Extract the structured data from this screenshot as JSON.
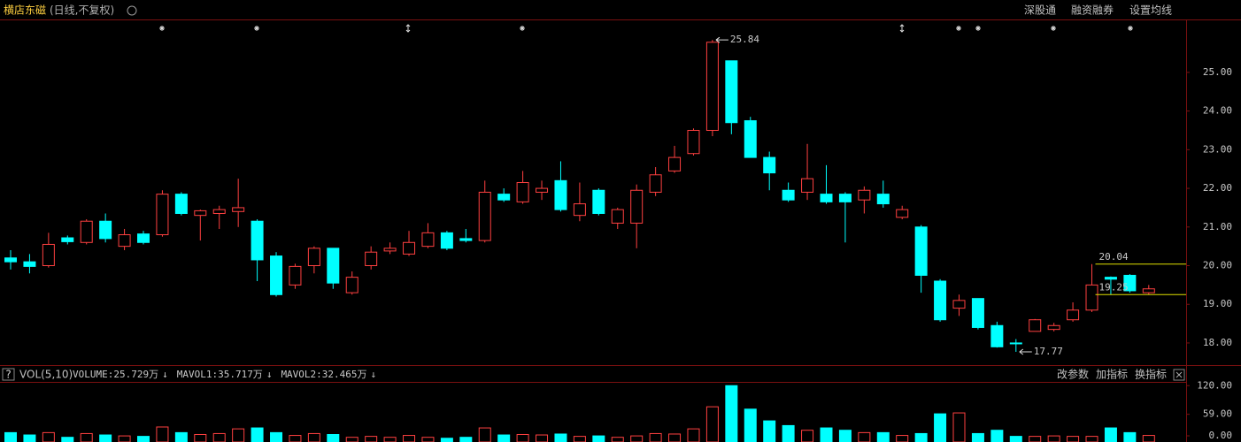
{
  "header": {
    "title": "横店东磁",
    "subtitle": "(日线,不复权)",
    "buttons": [
      "深股通",
      "融资融券",
      "设置均线"
    ]
  },
  "chart_data": [
    {
      "type": "candlestick",
      "open": [
        20.2,
        20.1,
        20.0,
        20.72,
        20.6,
        21.15,
        20.5,
        20.82,
        20.8,
        21.85,
        21.3,
        21.35,
        21.4,
        21.15,
        20.25,
        19.5,
        20.0,
        20.45,
        19.3,
        20.0,
        20.38,
        20.3,
        20.5,
        20.85,
        20.7,
        20.65,
        21.85,
        21.65,
        21.9,
        22.2,
        21.3,
        21.95,
        21.1,
        21.1,
        21.9,
        22.45,
        22.9,
        23.5,
        25.3,
        23.75,
        22.8,
        21.95,
        21.9,
        21.85,
        21.85,
        21.7,
        21.85,
        21.25,
        21.0,
        19.6,
        18.9,
        19.15,
        18.45,
        18.0,
        18.3,
        18.35,
        18.6,
        18.85,
        19.7,
        19.75,
        19.3
      ],
      "high": [
        20.4,
        20.3,
        20.85,
        20.78,
        21.2,
        21.35,
        20.95,
        20.9,
        21.95,
        21.9,
        21.45,
        21.55,
        22.25,
        21.2,
        20.35,
        20.05,
        20.5,
        20.45,
        19.85,
        20.5,
        20.6,
        20.9,
        21.1,
        20.9,
        20.95,
        22.2,
        22.0,
        22.45,
        22.2,
        22.7,
        22.15,
        22.0,
        21.5,
        22.1,
        22.55,
        23.1,
        23.55,
        25.84,
        25.3,
        23.85,
        22.95,
        22.15,
        23.15,
        22.6,
        21.9,
        22.05,
        22.2,
        21.55,
        21.05,
        19.65,
        19.25,
        19.15,
        18.55,
        18.1,
        18.62,
        18.52,
        19.05,
        20.04,
        19.72,
        19.78,
        19.5
      ],
      "low": [
        19.9,
        19.8,
        19.95,
        20.55,
        20.55,
        20.6,
        20.4,
        20.55,
        20.75,
        21.3,
        20.65,
        20.95,
        21.0,
        19.6,
        19.2,
        19.4,
        19.8,
        19.4,
        19.25,
        19.9,
        20.3,
        20.25,
        20.45,
        20.4,
        20.6,
        20.6,
        21.65,
        21.6,
        21.7,
        21.4,
        21.15,
        21.3,
        20.95,
        20.45,
        21.8,
        22.4,
        22.85,
        23.35,
        23.4,
        22.8,
        21.95,
        21.65,
        21.7,
        21.6,
        20.6,
        21.35,
        21.5,
        21.2,
        19.3,
        18.55,
        18.7,
        18.35,
        17.88,
        17.77,
        18.3,
        18.3,
        18.55,
        18.8,
        19.25,
        19.3,
        19.25
      ],
      "close": [
        20.1,
        19.98,
        20.55,
        20.62,
        21.15,
        20.7,
        20.8,
        20.6,
        21.85,
        21.35,
        21.42,
        21.45,
        21.5,
        20.15,
        19.25,
        19.98,
        20.45,
        19.55,
        19.7,
        20.35,
        20.45,
        20.6,
        20.85,
        20.45,
        20.65,
        21.9,
        21.7,
        22.15,
        22.0,
        21.45,
        21.6,
        21.35,
        21.45,
        21.95,
        22.35,
        22.8,
        23.5,
        25.78,
        23.7,
        22.8,
        22.4,
        21.7,
        22.25,
        21.65,
        21.65,
        21.95,
        21.6,
        21.45,
        19.75,
        18.6,
        19.1,
        18.4,
        17.9,
        17.98,
        18.6,
        18.45,
        18.85,
        19.5,
        19.65,
        19.35,
        19.4
      ],
      "ylim": [
        17.45,
        26.37
      ],
      "yticks": [
        {
          "value": 18,
          "label": "18.00"
        },
        {
          "value": 19,
          "label": "19.00"
        },
        {
          "value": 20,
          "label": "20.00"
        },
        {
          "value": 21,
          "label": "21.00"
        },
        {
          "value": 22,
          "label": "22.00"
        },
        {
          "value": 23,
          "label": "23.00"
        },
        {
          "value": 24,
          "label": "24.00"
        },
        {
          "value": 25,
          "label": "25.00"
        }
      ],
      "extremes": [
        25.84,
        17.77
      ],
      "levels": [
        20.04,
        19.25
      ],
      "up_color": "#ff4040",
      "down_color": "#00ffff",
      "level_color": "#e0e000"
    },
    {
      "type": "bar",
      "indicator": "VOL(5,10)",
      "readouts": [
        {
          "text": "VOLUME:25.729万",
          "arrow": "↓",
          "color": "#ffffff"
        },
        {
          "text": "MAVOL1:35.717万",
          "arrow": "↓",
          "color": "#f0f000"
        },
        {
          "text": "MAVOL2:32.465万",
          "arrow": "↓",
          "color": "#ff40ff"
        }
      ],
      "buttons": [
        "改参数",
        "加指标",
        "换指标"
      ],
      "values": [
        20,
        15,
        20,
        10,
        18,
        15,
        13,
        12,
        32,
        20,
        16,
        18,
        28,
        30,
        20,
        14,
        18,
        16,
        10,
        12,
        10,
        14,
        10,
        8,
        10,
        30,
        15,
        16,
        15,
        17,
        12,
        13,
        10,
        13,
        18,
        17,
        28,
        75,
        120,
        70,
        45,
        35,
        25,
        30,
        25,
        20,
        20,
        14,
        18,
        60,
        62,
        18,
        25,
        12,
        12,
        13,
        12,
        12,
        30,
        20,
        14
      ],
      "ylim": [
        0,
        128
      ],
      "yticks": [
        {
          "value": 120,
          "label": "120.00"
        },
        {
          "value": 59,
          "label": "59.00"
        },
        {
          "value": 0,
          "label": "0.00"
        }
      ]
    }
  ]
}
